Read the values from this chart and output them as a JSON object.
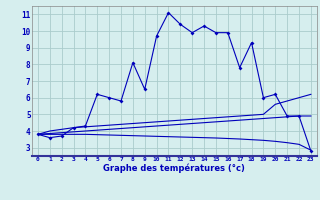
{
  "xlabel": "Graphe des températures (°c)",
  "background_color": "#d6eeee",
  "grid_color": "#aacccc",
  "line_color": "#0000bb",
  "x_values": [
    0,
    1,
    2,
    3,
    4,
    5,
    6,
    7,
    8,
    9,
    10,
    11,
    12,
    13,
    14,
    15,
    16,
    17,
    18,
    19,
    20,
    21,
    22,
    23
  ],
  "main_temps": [
    3.8,
    3.6,
    3.7,
    4.2,
    4.3,
    6.2,
    6.0,
    5.8,
    8.1,
    6.5,
    9.7,
    11.1,
    10.4,
    9.9,
    10.3,
    9.9,
    9.9,
    7.8,
    9.3,
    6.0,
    6.2,
    4.9,
    4.9,
    2.8
  ],
  "line1": [
    3.8,
    4.0,
    4.1,
    4.2,
    4.25,
    4.3,
    4.35,
    4.4,
    4.45,
    4.5,
    4.55,
    4.6,
    4.65,
    4.7,
    4.75,
    4.8,
    4.85,
    4.9,
    4.95,
    5.0,
    5.6,
    5.8,
    6.0,
    6.2
  ],
  "line2": [
    3.8,
    3.85,
    3.9,
    3.95,
    4.0,
    4.05,
    4.1,
    4.15,
    4.2,
    4.25,
    4.3,
    4.35,
    4.4,
    4.45,
    4.5,
    4.55,
    4.6,
    4.65,
    4.7,
    4.75,
    4.8,
    4.85,
    4.9,
    4.9
  ],
  "line3": [
    3.8,
    3.8,
    3.8,
    3.8,
    3.8,
    3.78,
    3.76,
    3.74,
    3.72,
    3.7,
    3.68,
    3.66,
    3.64,
    3.62,
    3.6,
    3.58,
    3.55,
    3.52,
    3.48,
    3.44,
    3.38,
    3.3,
    3.2,
    2.85
  ],
  "ylim": [
    2.5,
    11.5
  ],
  "yticks": [
    3,
    4,
    5,
    6,
    7,
    8,
    9,
    10,
    11
  ],
  "xlim": [
    -0.5,
    23.5
  ]
}
